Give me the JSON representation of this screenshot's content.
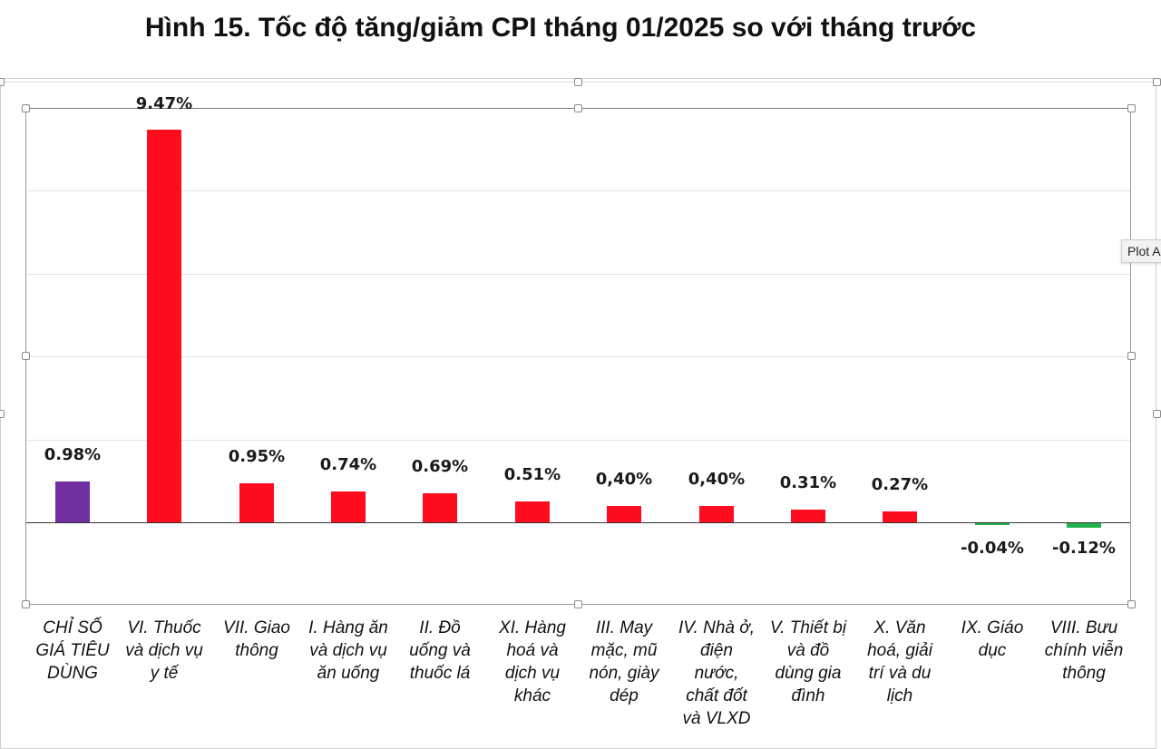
{
  "title": "Hình 15. Tốc độ tăng/giảm CPI tháng 01/2025 so với tháng trước",
  "tooltip": "Plot A",
  "colors": {
    "total": "#7030a0",
    "increase": "#ff0d1f",
    "decrease": "#22b14c"
  },
  "chart_data": {
    "type": "bar",
    "title": "Hình 15. Tốc độ tăng/giảm CPI tháng 01/2025 so với tháng trước",
    "xlabel": "",
    "ylabel": "",
    "ylim": [
      -2,
      10
    ],
    "grid": true,
    "gridlines": [
      10,
      8,
      6,
      4,
      2,
      0,
      -2
    ],
    "legend": null,
    "categories": [
      "CHỈ SỐ GIÁ TIÊU DÙNG",
      "VI. Thuốc và dịch vụ y tế",
      "VII. Giao thông",
      "I. Hàng ăn và dịch vụ ăn uống",
      "II. Đồ uống và thuốc lá",
      "XI. Hàng hoá và dịch vụ khác",
      "III. May mặc, mũ nón, giày dép",
      "IV. Nhà ở, điện nước, chất đốt và VLXD",
      "V. Thiết bị và đồ dùng gia đình",
      "X. Văn hoá, giải trí và du lịch",
      "IX. Giáo dục",
      "VIII. Bưu chính viễn thông"
    ],
    "values": [
      0.98,
      9.47,
      0.95,
      0.74,
      0.69,
      0.51,
      0.4,
      0.4,
      0.31,
      0.27,
      -0.04,
      -0.12
    ],
    "data_labels": [
      "0.98%",
      "9.47%",
      "0.95%",
      "0.74%",
      "0.69%",
      "0.51%",
      "0,40%",
      "0,40%",
      "0.31%",
      "0.27%",
      "-0.04%",
      "-0.12%"
    ],
    "axis_labels_wrapped": [
      "CHỈ SỐ\nGIÁ TIÊU\nDÙNG",
      "VI. Thuốc\nvà dịch vụ\ny tế",
      "VII. Giao\nthông",
      "I. Hàng ăn\nvà dịch vụ\năn uống",
      "II. Đồ\nuống và\nthuốc lá",
      "XI. Hàng\nhoá và\ndịch vụ\nkhác",
      "III. May\nmặc, mũ\nnón, giày\ndép",
      "IV. Nhà ở,\nđiện\nnước,\nchất đốt\nvà VLXD",
      "V. Thiết bị\nvà đồ\ndùng gia\nđình",
      "X. Văn\nhoá, giải\ntrí và du\nlịch",
      "IX. Giáo\ndục",
      "VIII. Bưu\nchính viễn\nthông"
    ]
  }
}
